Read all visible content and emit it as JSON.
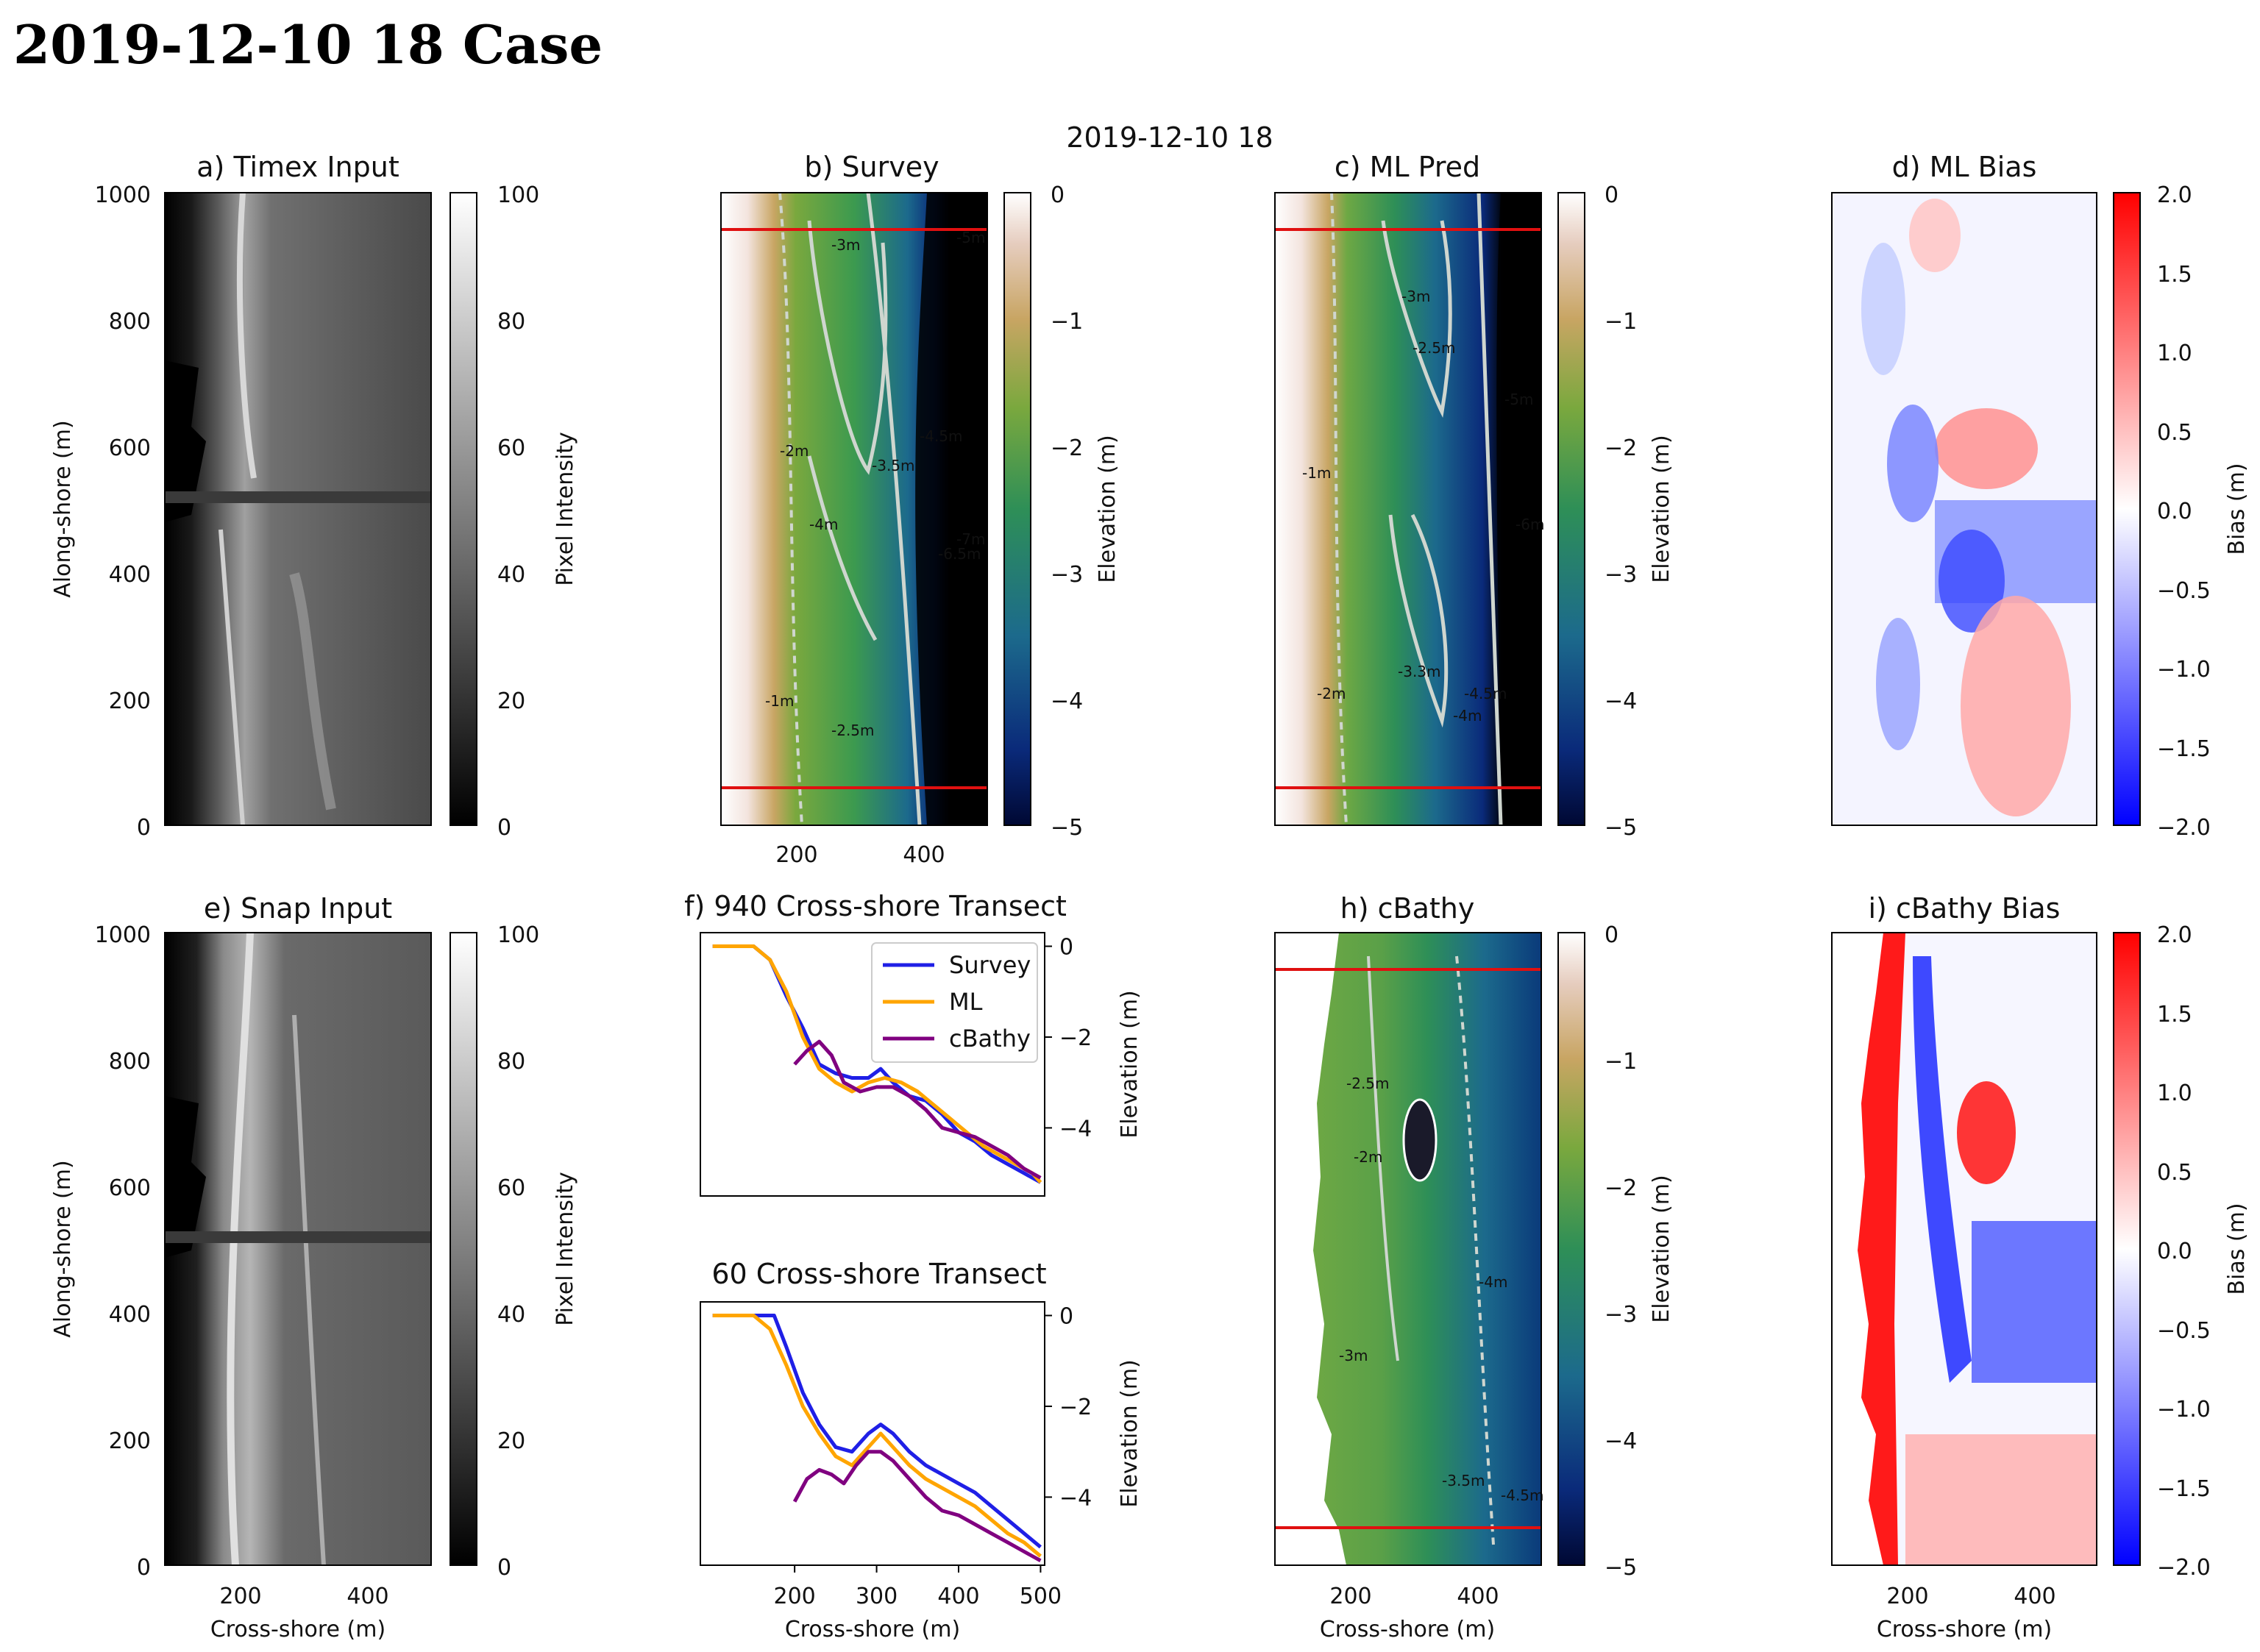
{
  "page": {
    "title": "2019-12-10 18 Case",
    "suptitle": "2019-12-10 18"
  },
  "colors": {
    "survey_line": "#1f1fe6",
    "ml_line": "#ffa500",
    "cbathy_line": "#800080",
    "transect_marker": "#e01010",
    "bias_pos": "#ff0000",
    "bias_neg": "#0000ff"
  },
  "panels": {
    "a": {
      "title": "a) Timex Input",
      "ylabel": "Along-shore (m)",
      "cbar_label": "Pixel Intensity",
      "yticks": [
        "0",
        "200",
        "400",
        "600",
        "800",
        "1000"
      ],
      "cbar_ticks": [
        "0",
        "20",
        "40",
        "60",
        "80",
        "100"
      ]
    },
    "b": {
      "title": "b) Survey",
      "cbar_label": "Elevation (m)",
      "xticks": [
        "200",
        "400"
      ],
      "cbar_ticks": [
        "0",
        "−1",
        "−2",
        "−3",
        "−4",
        "−5"
      ],
      "contour_labels": [
        "-3m",
        "-3.5m",
        "-4.5m",
        "-2.5m",
        "-4m",
        "-2m",
        "-1m",
        "-5m",
        "-6.5m",
        "-7m"
      ]
    },
    "c": {
      "title": "c) ML Pred",
      "cbar_label": "Elevation (m)",
      "cbar_ticks": [
        "0",
        "−1",
        "−2",
        "−3",
        "−4",
        "−5"
      ],
      "contour_labels": [
        "-3m",
        "-2.5m",
        "-4.5m",
        "-1m",
        "-2m",
        "-3.3m",
        "-4m",
        "-5m",
        "-6m"
      ]
    },
    "d": {
      "title": "d) ML Bias",
      "cbar_label": "Bias (m)",
      "cbar_ticks": [
        "2.0",
        "1.5",
        "1.0",
        "0.5",
        "0.0",
        "−0.5",
        "−1.0",
        "−1.5",
        "−2.0"
      ]
    },
    "e": {
      "title": "e) Snap Input",
      "ylabel": "Along-shore (m)",
      "xlabel": "Cross-shore (m)",
      "cbar_label": "Pixel Intensity",
      "yticks": [
        "0",
        "200",
        "400",
        "600",
        "800",
        "1000"
      ],
      "xticks": [
        "200",
        "400"
      ],
      "cbar_ticks": [
        "0",
        "20",
        "40",
        "60",
        "80",
        "100"
      ]
    },
    "f": {
      "title": "f) 940 Cross-shore Transect",
      "ylabel": "Elevation (m)",
      "yticks": [
        "0",
        "−2",
        "−4"
      ],
      "legend": [
        "Survey",
        "ML",
        "cBathy"
      ]
    },
    "g": {
      "title": "60 Cross-shore Transect",
      "ylabel": "Elevation (m)",
      "xlabel": "Cross-shore (m)",
      "yticks": [
        "0",
        "−2",
        "−4"
      ],
      "xticks": [
        "200",
        "300",
        "400",
        "500"
      ]
    },
    "h": {
      "title": "h) cBathy",
      "xlabel": "Cross-shore (m)",
      "cbar_label": "Elevation (m)",
      "xticks": [
        "200",
        "400"
      ],
      "cbar_ticks": [
        "0",
        "−1",
        "−2",
        "−3",
        "−4",
        "−5"
      ],
      "contour_labels": [
        "-2.5m",
        "-3m",
        "-3.5m",
        "-4m",
        "-4.5m",
        "-2m"
      ]
    },
    "i": {
      "title": "i) cBathy Bias",
      "xlabel": "Cross-shore (m)",
      "cbar_label": "Bias (m)",
      "xticks": [
        "200",
        "400"
      ],
      "cbar_ticks": [
        "2.0",
        "1.5",
        "1.0",
        "0.5",
        "0.0",
        "−0.5",
        "−1.0",
        "−1.5",
        "−2.0"
      ]
    }
  },
  "chart_data": [
    {
      "type": "line",
      "panel": "f",
      "title": "f) 940 Cross-shore Transect",
      "xlabel": "",
      "ylabel": "Elevation (m)",
      "xlim": [
        85,
        505
      ],
      "ylim": [
        -5.5,
        0.3
      ],
      "legend_position": "top-right",
      "series": [
        {
          "name": "Survey",
          "x": [
            100,
            150,
            170,
            190,
            210,
            230,
            250,
            270,
            290,
            305,
            320,
            340,
            360,
            380,
            400,
            420,
            440,
            460,
            480,
            500
          ],
          "y": [
            0,
            0,
            -0.3,
            -1.1,
            -1.8,
            -2.6,
            -2.8,
            -2.9,
            -2.9,
            -2.7,
            -3.0,
            -3.3,
            -3.4,
            -3.7,
            -4.1,
            -4.3,
            -4.6,
            -4.8,
            -5.0,
            -5.2
          ]
        },
        {
          "name": "ML",
          "x": [
            100,
            150,
            170,
            190,
            210,
            230,
            250,
            270,
            290,
            310,
            330,
            350,
            370,
            390,
            410,
            430,
            450,
            470,
            490,
            500
          ],
          "y": [
            0,
            0,
            -0.3,
            -1.0,
            -2.0,
            -2.7,
            -3.0,
            -3.2,
            -3.0,
            -2.9,
            -3.0,
            -3.2,
            -3.5,
            -3.8,
            -4.1,
            -4.4,
            -4.6,
            -4.8,
            -5.0,
            -5.2
          ]
        },
        {
          "name": "cBathy",
          "x": [
            200,
            215,
            230,
            245,
            260,
            280,
            300,
            320,
            340,
            360,
            380,
            400,
            420,
            440,
            460,
            480,
            500
          ],
          "y": [
            -2.6,
            -2.3,
            -2.1,
            -2.4,
            -3.0,
            -3.2,
            -3.1,
            -3.1,
            -3.3,
            -3.6,
            -4.0,
            -4.1,
            -4.2,
            -4.4,
            -4.6,
            -4.9,
            -5.1
          ]
        }
      ]
    },
    {
      "type": "line",
      "panel": "g",
      "title": "60 Cross-shore Transect",
      "xlabel": "Cross-shore (m)",
      "ylabel": "Elevation (m)",
      "xlim": [
        85,
        505
      ],
      "ylim": [
        -5.5,
        0.3
      ],
      "series": [
        {
          "name": "Survey",
          "x": [
            100,
            150,
            175,
            190,
            210,
            230,
            250,
            270,
            290,
            305,
            320,
            340,
            360,
            380,
            400,
            420,
            440,
            460,
            480,
            500
          ],
          "y": [
            0,
            0,
            0,
            -0.7,
            -1.7,
            -2.4,
            -2.9,
            -3.0,
            -2.6,
            -2.4,
            -2.6,
            -3.0,
            -3.3,
            -3.5,
            -3.7,
            -3.9,
            -4.2,
            -4.5,
            -4.8,
            -5.1
          ]
        },
        {
          "name": "ML",
          "x": [
            100,
            150,
            170,
            190,
            210,
            230,
            250,
            270,
            290,
            305,
            320,
            340,
            360,
            380,
            400,
            420,
            440,
            460,
            480,
            500
          ],
          "y": [
            0,
            0,
            -0.3,
            -1.1,
            -2.0,
            -2.6,
            -3.1,
            -3.3,
            -2.9,
            -2.6,
            -2.9,
            -3.3,
            -3.6,
            -3.8,
            -4.0,
            -4.2,
            -4.5,
            -4.8,
            -5.0,
            -5.3
          ]
        },
        {
          "name": "cBathy",
          "x": [
            200,
            215,
            230,
            245,
            260,
            275,
            290,
            305,
            320,
            340,
            360,
            380,
            400,
            420,
            440,
            460,
            480,
            500
          ],
          "y": [
            -4.1,
            -3.6,
            -3.4,
            -3.5,
            -3.7,
            -3.3,
            -3.0,
            -3.0,
            -3.2,
            -3.6,
            -4.0,
            -4.3,
            -4.4,
            -4.6,
            -4.8,
            -5.0,
            -5.2,
            -5.4
          ]
        }
      ]
    }
  ]
}
